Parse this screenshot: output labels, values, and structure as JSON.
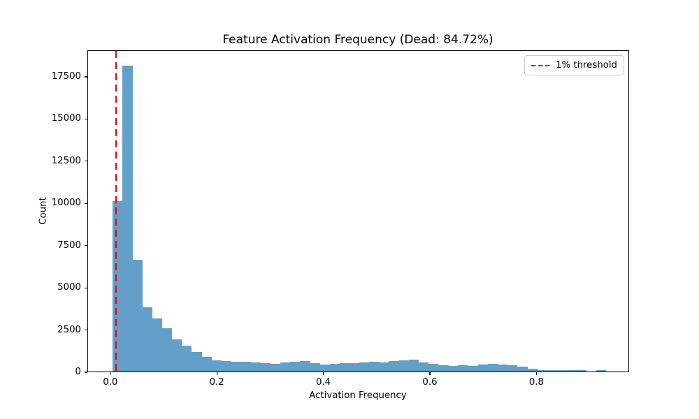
{
  "chart_data": {
    "type": "bar",
    "subtype": "histogram",
    "title": "Feature Activation Frequency (Dead: 84.72%)",
    "xlabel": "Activation Frequency",
    "ylabel": "Count",
    "bar_color": "#62a0ca",
    "grid": false,
    "xlim": [
      -0.043,
      0.974
    ],
    "ylim": [
      0,
      19070
    ],
    "xticks": [
      {
        "v": 0.0,
        "label": "0.0"
      },
      {
        "v": 0.2,
        "label": "0.2"
      },
      {
        "v": 0.4,
        "label": "0.4"
      },
      {
        "v": 0.6,
        "label": "0.6"
      },
      {
        "v": 0.8,
        "label": "0.8"
      }
    ],
    "yticks": [
      {
        "v": 0,
        "label": "0"
      },
      {
        "v": 2500,
        "label": "2500"
      },
      {
        "v": 5000,
        "label": "5000"
      },
      {
        "v": 7500,
        "label": "7500"
      },
      {
        "v": 10000,
        "label": "10000"
      },
      {
        "v": 12500,
        "label": "12500"
      },
      {
        "v": 15000,
        "label": "15000"
      },
      {
        "v": 17500,
        "label": "17500"
      }
    ],
    "bins": {
      "start": 0.003,
      "width": 0.01853,
      "count": 50
    },
    "values": [
      10100,
      18100,
      6600,
      3800,
      3150,
      2550,
      1900,
      1520,
      1150,
      880,
      680,
      610,
      580,
      600,
      540,
      500,
      470,
      540,
      565,
      635,
      500,
      410,
      470,
      490,
      490,
      540,
      580,
      520,
      630,
      650,
      700,
      520,
      470,
      380,
      320,
      370,
      320,
      410,
      470,
      410,
      370,
      270,
      150,
      95,
      85,
      80,
      80,
      85,
      0,
      80
    ],
    "threshold_line": {
      "x": 0.01,
      "color": "#e60000",
      "linestyle": "dashed"
    },
    "legend": [
      {
        "label": "1% threshold",
        "color": "#e60000",
        "linestyle": "dashed"
      }
    ],
    "legend_position": "upper right"
  }
}
